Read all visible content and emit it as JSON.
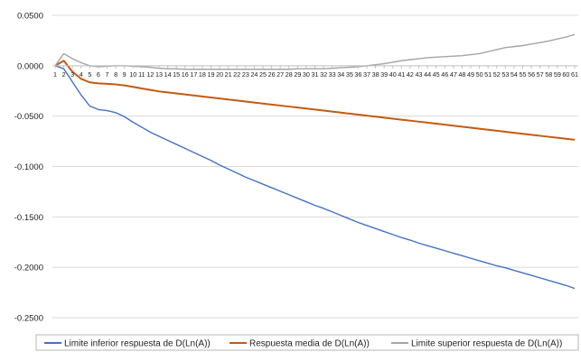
{
  "chart_data": {
    "type": "line",
    "title": "",
    "xlabel": "",
    "ylabel": "",
    "ylim": [
      -0.25,
      0.05
    ],
    "yticks": [
      "0.0500",
      "0.0000",
      "-0.0500",
      "-0.1000",
      "-0.1500",
      "-0.2000",
      "-0.2500"
    ],
    "ytick_values": [
      0.05,
      0.0,
      -0.05,
      -0.1,
      -0.15,
      -0.2,
      -0.25
    ],
    "x": [
      1,
      2,
      3,
      4,
      5,
      6,
      7,
      8,
      9,
      10,
      11,
      12,
      13,
      14,
      15,
      16,
      17,
      18,
      19,
      20,
      21,
      22,
      23,
      24,
      25,
      26,
      27,
      28,
      29,
      30,
      31,
      32,
      33,
      34,
      35,
      36,
      37,
      38,
      39,
      40,
      41,
      42,
      43,
      44,
      45,
      46,
      47,
      48,
      49,
      50,
      51,
      52,
      53,
      54,
      55,
      56,
      57,
      58,
      59,
      60,
      61
    ],
    "x_tick_labels": [
      "1",
      "2",
      "3",
      "4",
      "5",
      "6",
      "7",
      "8",
      "9",
      "10",
      "11",
      "12",
      "13",
      "14",
      "15",
      "16",
      "17",
      "18",
      "19",
      "20",
      "21",
      "22",
      "23",
      "24",
      "25",
      "26",
      "27",
      "28",
      "29",
      "30",
      "31",
      "32",
      "33",
      "34",
      "35",
      "36",
      "37",
      "38",
      "39",
      "40",
      "41",
      "42",
      "43",
      "44",
      "45",
      "46",
      "47",
      "48",
      "49",
      "50",
      "51",
      "52",
      "53",
      "54",
      "55",
      "56",
      "57",
      "58",
      "59",
      "60",
      "61"
    ],
    "grid": "horizontal",
    "legend_position": "bottom",
    "series": [
      {
        "name": "Limite inferior respuesta de D(Ln(A))",
        "color": "#4472c4",
        "values": [
          0.0,
          -0.003,
          -0.016,
          -0.029,
          -0.04,
          -0.0435,
          -0.0445,
          -0.0465,
          -0.0505,
          -0.056,
          -0.061,
          -0.066,
          -0.07,
          -0.074,
          -0.078,
          -0.082,
          -0.086,
          -0.09,
          -0.094,
          -0.0985,
          -0.1025,
          -0.1065,
          -0.1105,
          -0.114,
          -0.1175,
          -0.121,
          -0.1245,
          -0.128,
          -0.1315,
          -0.135,
          -0.1385,
          -0.1415,
          -0.145,
          -0.1485,
          -0.152,
          -0.1555,
          -0.1585,
          -0.1615,
          -0.1645,
          -0.1675,
          -0.1705,
          -0.173,
          -0.176,
          -0.1785,
          -0.181,
          -0.1835,
          -0.186,
          -0.1885,
          -0.191,
          -0.1935,
          -0.196,
          -0.1985,
          -0.2005,
          -0.203,
          -0.2055,
          -0.208,
          -0.2105,
          -0.213,
          -0.2155,
          -0.218,
          -0.221
        ]
      },
      {
        "name": "Respuesta media de D(Ln(A))",
        "color": "#c55a11",
        "values": [
          0.0,
          0.005,
          -0.006,
          -0.013,
          -0.0165,
          -0.0175,
          -0.018,
          -0.0185,
          -0.0195,
          -0.021,
          -0.0225,
          -0.024,
          -0.0255,
          -0.0265,
          -0.0275,
          -0.0285,
          -0.0295,
          -0.0305,
          -0.0315,
          -0.0325,
          -0.0335,
          -0.0345,
          -0.0355,
          -0.0365,
          -0.0375,
          -0.0385,
          -0.0395,
          -0.0405,
          -0.0415,
          -0.0425,
          -0.0435,
          -0.0445,
          -0.0455,
          -0.0465,
          -0.0475,
          -0.0485,
          -0.0495,
          -0.0505,
          -0.0515,
          -0.0525,
          -0.0535,
          -0.0545,
          -0.0555,
          -0.0565,
          -0.0575,
          -0.0585,
          -0.0595,
          -0.0605,
          -0.0615,
          -0.0625,
          -0.0635,
          -0.0645,
          -0.0655,
          -0.0665,
          -0.0675,
          -0.0685,
          -0.0695,
          -0.0705,
          -0.0715,
          -0.0725,
          -0.0735
        ]
      },
      {
        "name": "Limite superior respuesta de D(Ln(A))",
        "color": "#a5a5a5",
        "values": [
          0.0,
          0.012,
          0.007,
          0.003,
          0.0,
          -0.001,
          -0.0005,
          0.0,
          0.0,
          -0.0005,
          -0.001,
          -0.0015,
          -0.0025,
          -0.003,
          -0.003,
          -0.0035,
          -0.0035,
          -0.0035,
          -0.0035,
          -0.0035,
          -0.0035,
          -0.0035,
          -0.0035,
          -0.0035,
          -0.0035,
          -0.0035,
          -0.0035,
          -0.0035,
          -0.003,
          -0.003,
          -0.003,
          -0.003,
          -0.0025,
          -0.002,
          -0.0015,
          -0.001,
          0.0,
          0.001,
          0.002,
          0.0035,
          0.005,
          0.006,
          0.007,
          0.008,
          0.0085,
          0.009,
          0.0095,
          0.01,
          0.011,
          0.012,
          0.014,
          0.016,
          0.018,
          0.019,
          0.02,
          0.0215,
          0.023,
          0.0245,
          0.0265,
          0.0285,
          0.031
        ]
      }
    ]
  }
}
